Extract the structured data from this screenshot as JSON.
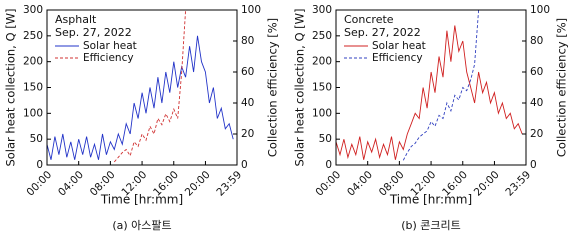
{
  "chart_data": [
    {
      "type": "line",
      "annotations": [
        "Asphalt",
        "Sep. 27, 2022"
      ],
      "caption": "(a) 아스팔트",
      "xlabel": "Time [hr:mm]",
      "ylabel": "Solar heat collection, Q [W]",
      "y2label": "Collection efficiency [%]",
      "xlim": [
        0,
        23.983
      ],
      "xticks": [
        {
          "value": 0,
          "label": "00:00"
        },
        {
          "value": 4,
          "label": "04:00"
        },
        {
          "value": 8,
          "label": "08:00"
        },
        {
          "value": 12,
          "label": "12:00"
        },
        {
          "value": 16,
          "label": "16:00"
        },
        {
          "value": 20,
          "label": "20:00"
        },
        {
          "value": 23.983,
          "label": "23:59"
        }
      ],
      "ylim": [
        0,
        300
      ],
      "yticks": [
        0,
        50,
        100,
        150,
        200,
        250,
        300
      ],
      "y2lim": [
        0,
        100
      ],
      "y2ticks": [
        0,
        20,
        40,
        60,
        80,
        100
      ],
      "x": [
        0,
        0.5,
        1,
        1.5,
        2,
        2.5,
        3,
        3.5,
        4,
        4.5,
        5,
        5.5,
        6,
        6.5,
        7,
        7.5,
        8,
        8.5,
        9,
        9.5,
        10,
        10.5,
        11,
        11.5,
        12,
        12.5,
        13,
        13.5,
        14,
        14.5,
        15,
        15.5,
        16,
        16.5,
        17,
        17.5,
        18,
        18.5,
        19,
        19.5,
        20,
        20.5,
        21,
        21.5,
        22,
        22.5,
        23,
        23.5
      ],
      "series": [
        {
          "name": "Solar heat",
          "color": "#2233c8",
          "style": "solid",
          "values": [
            40,
            10,
            55,
            20,
            60,
            15,
            45,
            10,
            50,
            20,
            55,
            15,
            40,
            10,
            60,
            20,
            45,
            30,
            60,
            40,
            80,
            60,
            120,
            90,
            140,
            100,
            150,
            110,
            170,
            120,
            180,
            140,
            200,
            150,
            190,
            170,
            230,
            180,
            250,
            200,
            180,
            120,
            150,
            90,
            110,
            70,
            80,
            50
          ]
        },
        {
          "name": "Efficiency",
          "color": "#d03030",
          "style": "dashed",
          "axis": "y2",
          "values": [
            null,
            null,
            null,
            null,
            null,
            null,
            null,
            null,
            null,
            null,
            null,
            null,
            null,
            null,
            null,
            null,
            null,
            2,
            5,
            8,
            10,
            6,
            15,
            12,
            20,
            16,
            25,
            20,
            30,
            26,
            33,
            28,
            36,
            30,
            60,
            100,
            100,
            null,
            null,
            null,
            null,
            null,
            null,
            null,
            null,
            null,
            null,
            null
          ]
        }
      ]
    },
    {
      "type": "line",
      "annotations": [
        "Concrete",
        "Sep. 27, 2022"
      ],
      "caption": "(b) 콘크리트",
      "xlabel": "Time [hr:mm]",
      "ylabel": "Solar heat collection, Q [W]",
      "y2label": "Collection efficiency [%]",
      "xlim": [
        0,
        23.983
      ],
      "xticks": [
        {
          "value": 0,
          "label": "00:00"
        },
        {
          "value": 4,
          "label": "04:00"
        },
        {
          "value": 8,
          "label": "08:00"
        },
        {
          "value": 12,
          "label": "12:00"
        },
        {
          "value": 16,
          "label": "16:00"
        },
        {
          "value": 20,
          "label": "20:00"
        },
        {
          "value": 23.983,
          "label": "23:59"
        }
      ],
      "ylim": [
        0,
        300
      ],
      "yticks": [
        0,
        50,
        100,
        150,
        200,
        250,
        300
      ],
      "y2lim": [
        0,
        100
      ],
      "y2ticks": [
        0,
        20,
        40,
        60,
        80,
        100
      ],
      "x": [
        0,
        0.5,
        1,
        1.5,
        2,
        2.5,
        3,
        3.5,
        4,
        4.5,
        5,
        5.5,
        6,
        6.5,
        7,
        7.5,
        8,
        8.5,
        9,
        9.5,
        10,
        10.5,
        11,
        11.5,
        12,
        12.5,
        13,
        13.5,
        14,
        14.5,
        15,
        15.5,
        16,
        16.5,
        17,
        17.5,
        18,
        18.5,
        19,
        19.5,
        20,
        20.5,
        21,
        21.5,
        22,
        22.5,
        23,
        23.5
      ],
      "series": [
        {
          "name": "Solar heat",
          "color": "#d02020",
          "style": "solid",
          "values": [
            45,
            20,
            50,
            15,
            40,
            20,
            55,
            10,
            45,
            25,
            50,
            15,
            40,
            20,
            55,
            10,
            45,
            30,
            60,
            80,
            100,
            90,
            150,
            110,
            180,
            140,
            210,
            170,
            260,
            200,
            270,
            220,
            240,
            180,
            150,
            120,
            180,
            140,
            160,
            120,
            140,
            100,
            120,
            90,
            100,
            70,
            80,
            60
          ]
        },
        {
          "name": "Efficiency",
          "color": "#3040c0",
          "style": "dashed",
          "axis": "y2",
          "values": [
            null,
            null,
            null,
            null,
            null,
            null,
            null,
            null,
            null,
            null,
            null,
            null,
            null,
            null,
            null,
            null,
            null,
            3,
            8,
            12,
            14,
            18,
            20,
            22,
            28,
            25,
            32,
            30,
            40,
            35,
            45,
            42,
            50,
            48,
            55,
            65,
            100,
            null,
            null,
            null,
            null,
            null,
            null,
            null,
            null,
            null,
            null,
            null
          ]
        }
      ]
    }
  ]
}
